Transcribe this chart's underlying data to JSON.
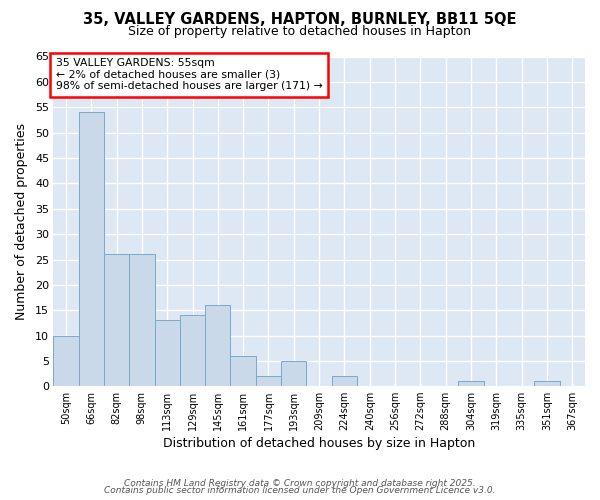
{
  "title_line1": "35, VALLEY GARDENS, HAPTON, BURNLEY, BB11 5QE",
  "title_line2": "Size of property relative to detached houses in Hapton",
  "xlabel": "Distribution of detached houses by size in Hapton",
  "ylabel": "Number of detached properties",
  "categories": [
    "50sqm",
    "66sqm",
    "82sqm",
    "98sqm",
    "113sqm",
    "129sqm",
    "145sqm",
    "161sqm",
    "177sqm",
    "193sqm",
    "209sqm",
    "224sqm",
    "240sqm",
    "256sqm",
    "272sqm",
    "288sqm",
    "304sqm",
    "319sqm",
    "335sqm",
    "351sqm",
    "367sqm"
  ],
  "values": [
    10,
    54,
    26,
    26,
    13,
    14,
    16,
    6,
    2,
    5,
    0,
    2,
    0,
    0,
    0,
    0,
    1,
    0,
    0,
    1,
    0
  ],
  "bar_color": "#c9d9ea",
  "bar_edge_color": "#7aaac8",
  "background_color": "#dde8f4",
  "plot_bg_color": "#dde8f4",
  "grid_color": "#ffffff",
  "ylim": [
    0,
    65
  ],
  "yticks": [
    0,
    5,
    10,
    15,
    20,
    25,
    30,
    35,
    40,
    45,
    50,
    55,
    60,
    65
  ],
  "annotation_line1": "35 VALLEY GARDENS: 55sqm",
  "annotation_line2": "← 2% of detached houses are smaller (3)",
  "annotation_line3": "98% of semi-detached houses are larger (171) →",
  "footer_line1": "Contains HM Land Registry data © Crown copyright and database right 2025.",
  "footer_line2": "Contains public sector information licensed under the Open Government Licence v3.0."
}
